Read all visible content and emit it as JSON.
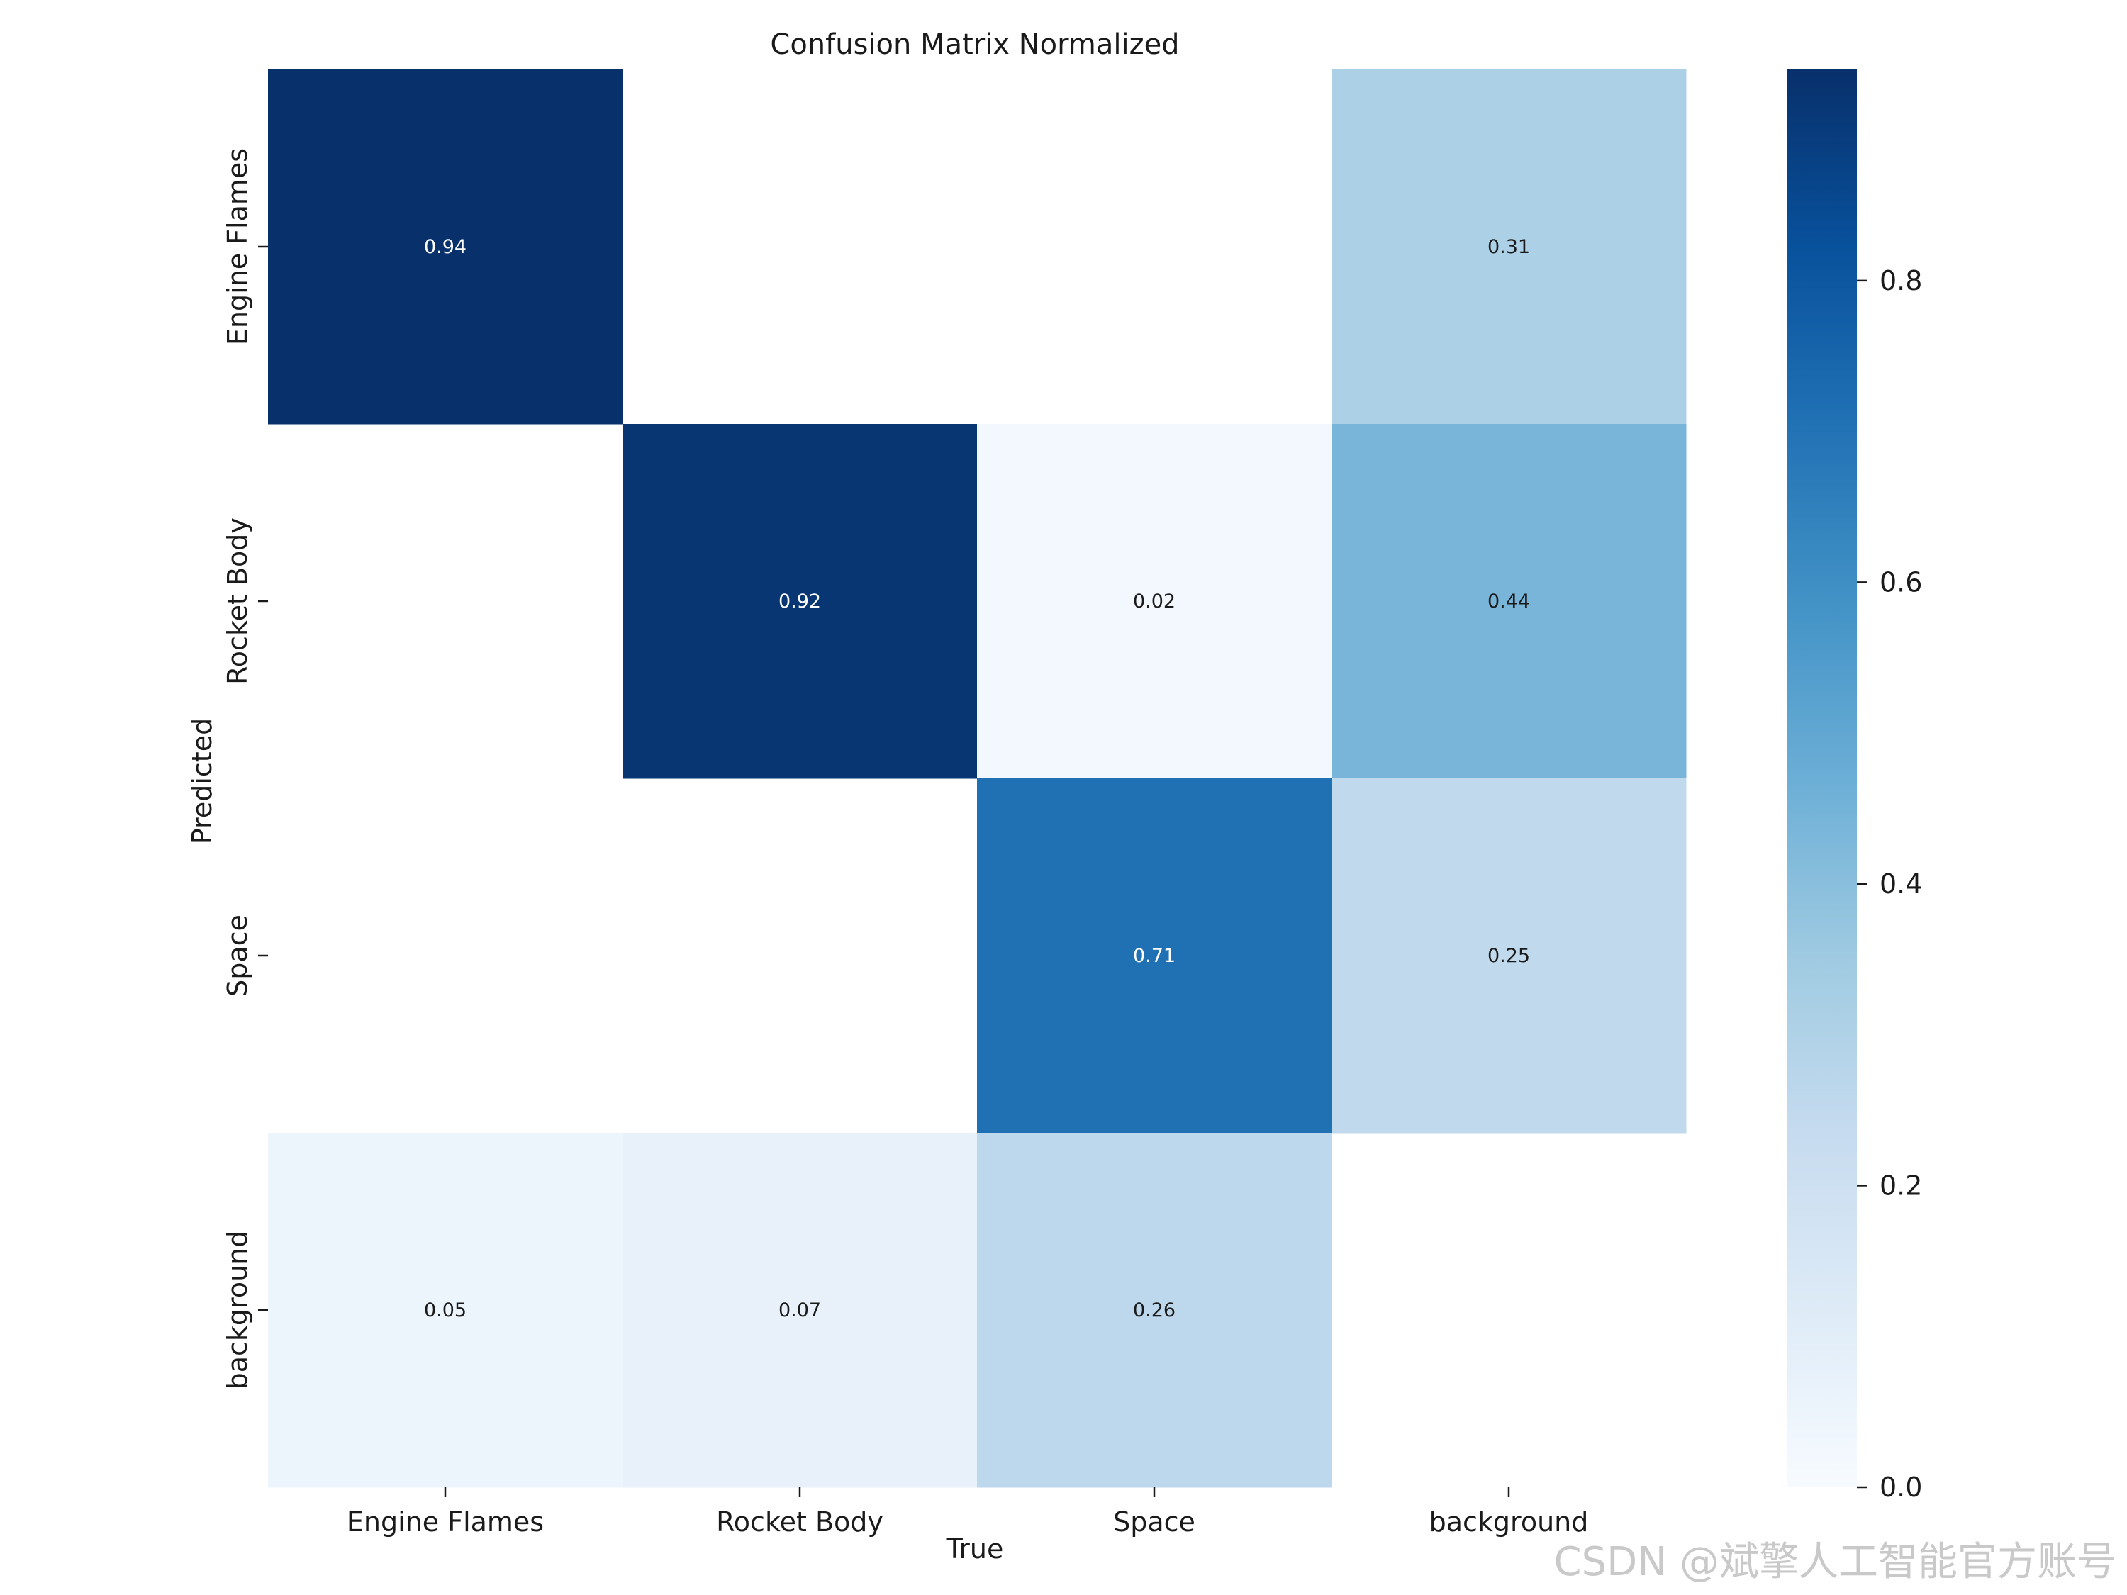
{
  "chart_data": {
    "type": "heatmap",
    "title": "Confusion Matrix Normalized",
    "xlabel": "True",
    "ylabel": "Predicted",
    "x_categories": [
      "Engine Flames",
      "Rocket Body",
      "Space",
      "background"
    ],
    "y_categories": [
      "Engine Flames",
      "Rocket Body",
      "Space",
      "background"
    ],
    "matrix": [
      [
        0.94,
        null,
        null,
        0.31
      ],
      [
        null,
        0.92,
        0.02,
        0.44
      ],
      [
        null,
        null,
        0.71,
        0.25
      ],
      [
        0.05,
        0.07,
        0.26,
        null
      ]
    ],
    "colormap": "Blues",
    "vmin": 0.0,
    "vmax": 0.94,
    "colorbar_ticks": [
      "0.0",
      "0.2",
      "0.4",
      "0.6",
      "0.8"
    ],
    "colorbar_tick_values": [
      0.0,
      0.2,
      0.4,
      0.6,
      0.8
    ]
  },
  "watermark": "CSDN @斌擎人工智能官方账号"
}
